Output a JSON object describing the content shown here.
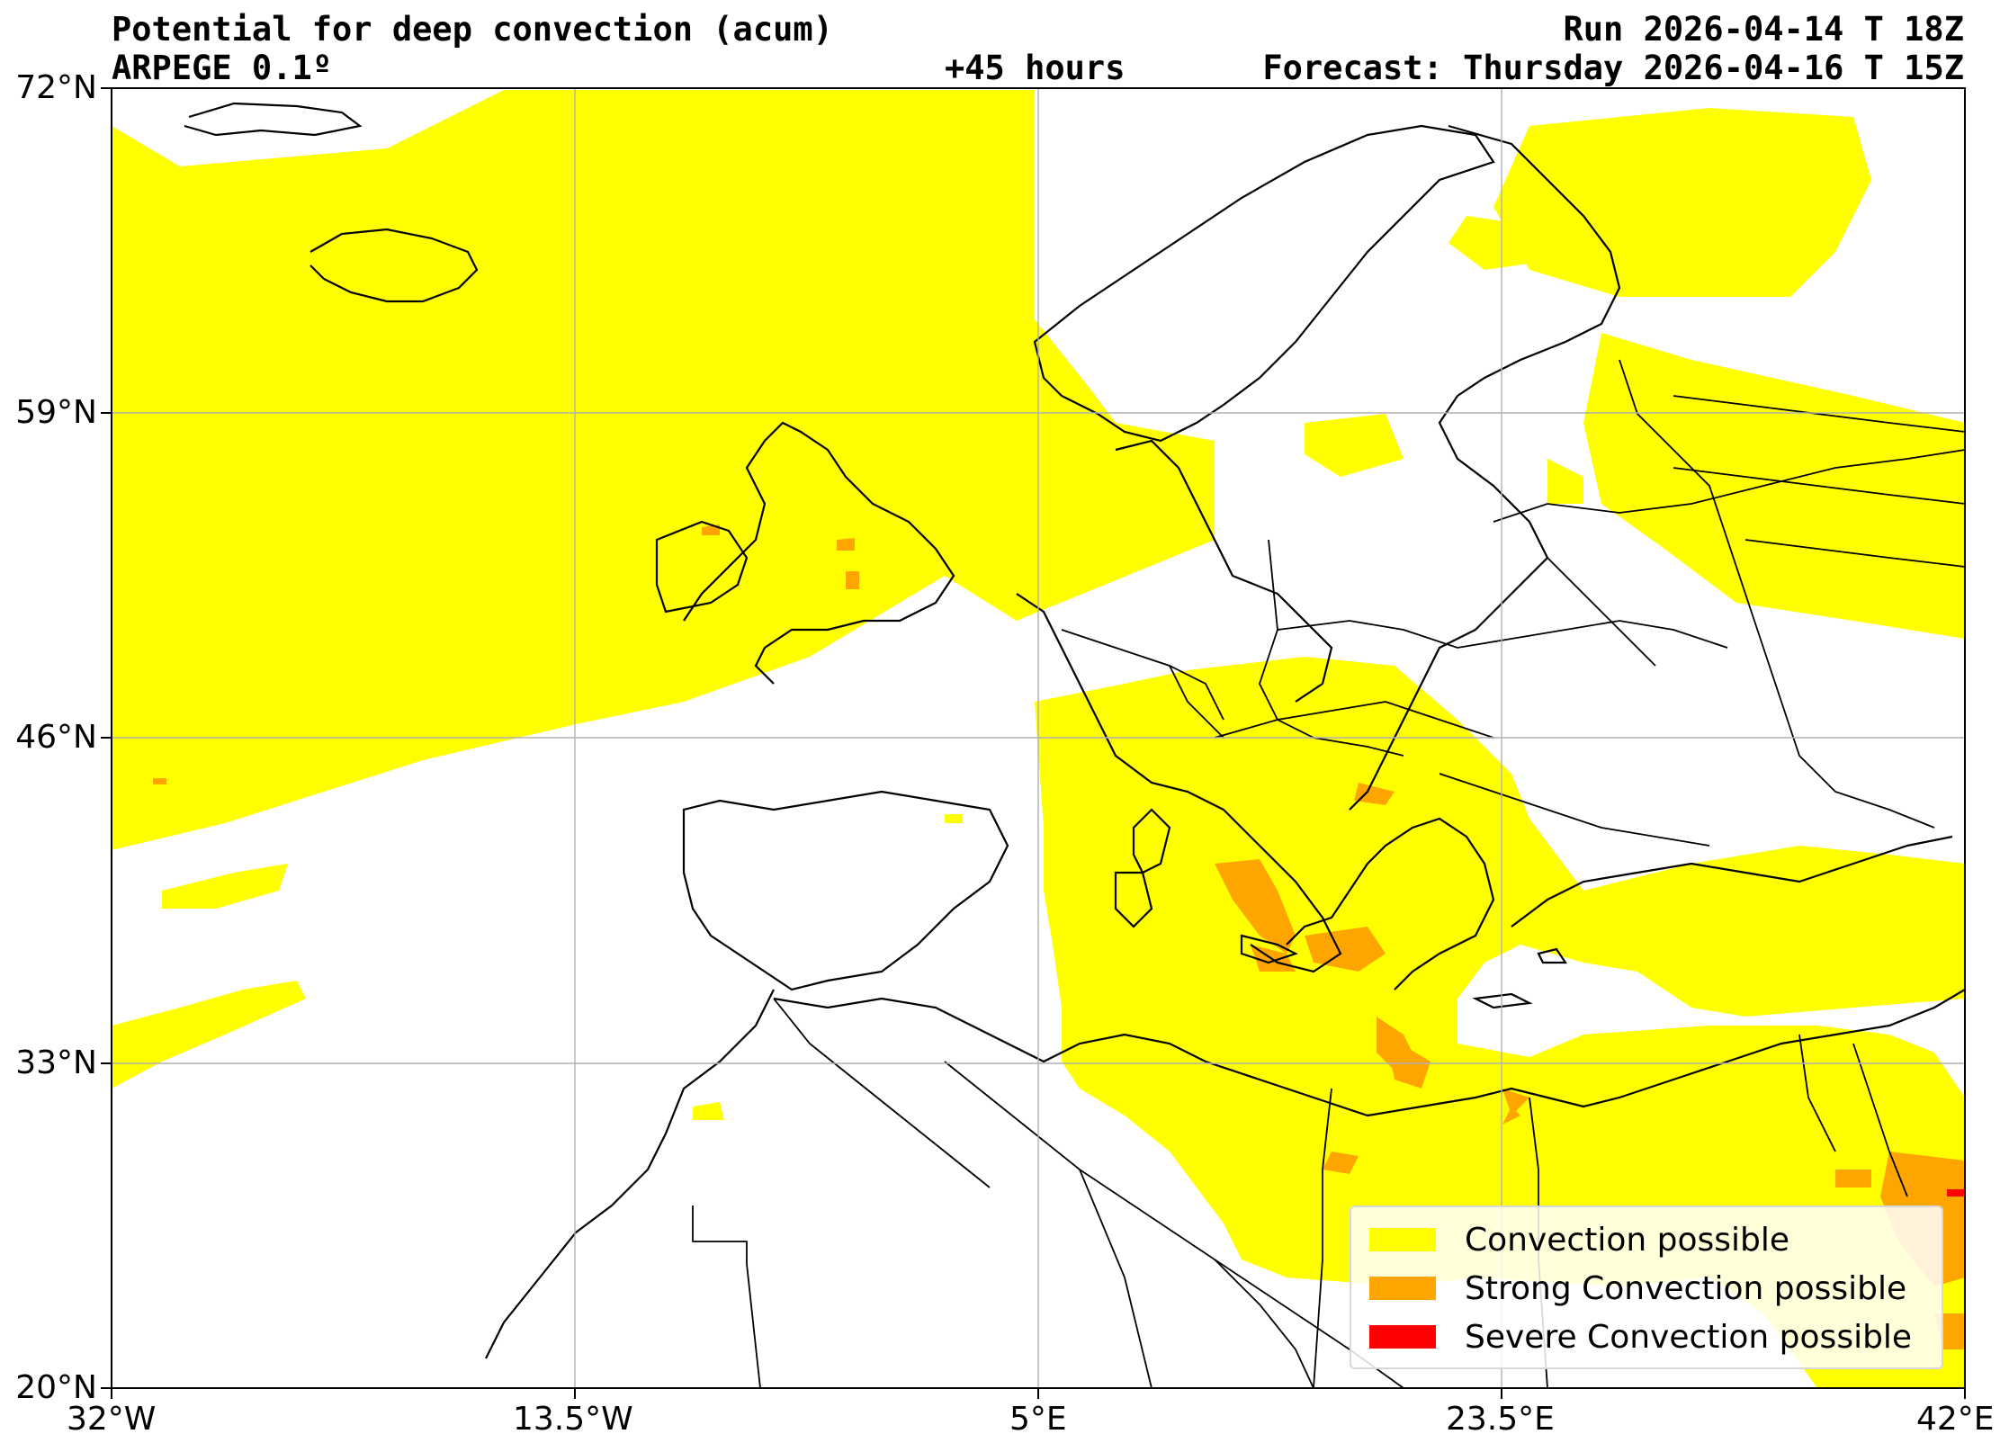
{
  "header": {
    "title": "Potential for deep convection (acum)",
    "model": "ARPEGE 0.1º",
    "lead_time": "+45 hours",
    "run": "Run 2026-04-14 T 18Z",
    "forecast": "Forecast: Thursday 2026-04-16 T 15Z"
  },
  "map": {
    "lon_range": [
      -32,
      42
    ],
    "lat_range": [
      20,
      72
    ],
    "lon_ticks": [
      "32°W",
      "13.5°W",
      "5°E",
      "23.5°E",
      "42°E"
    ],
    "lat_ticks": [
      "72°N",
      "59°N",
      "46°N",
      "33°N",
      "20°N"
    ],
    "grid": true
  },
  "legend": {
    "items": [
      {
        "label": "Convection possible",
        "color": "#ffff00"
      },
      {
        "label": "Strong Convection possible",
        "color": "#ffa500"
      },
      {
        "label": "Severe Convection possible",
        "color": "#ff0000"
      }
    ]
  },
  "colors": {
    "convection": "#ffff00",
    "strong": "#ffa500",
    "severe": "#ff0000",
    "coast": "#000000",
    "grid": "#b0b0b0"
  }
}
